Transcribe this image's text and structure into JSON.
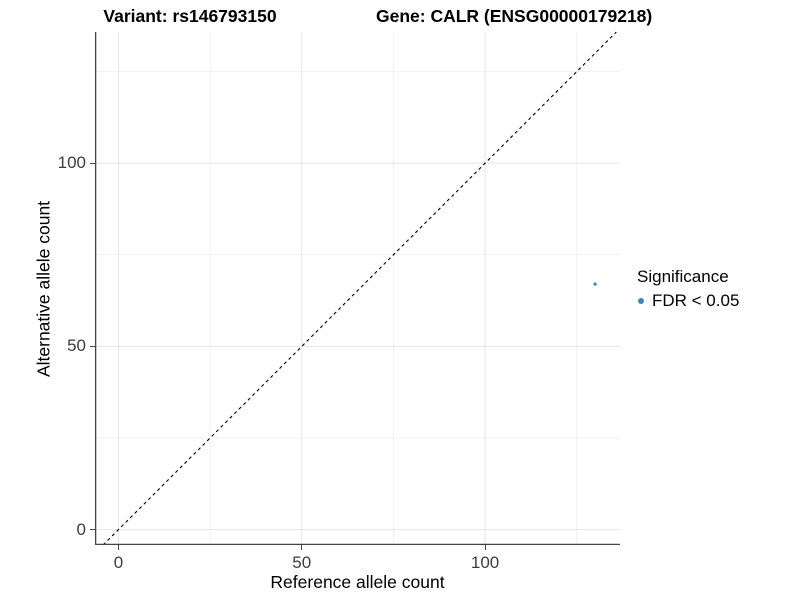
{
  "figure": {
    "title_left": "Variant: rs146793150",
    "title_right": "Gene: CALR (ENSG00000179218)"
  },
  "chart_data": {
    "type": "scatter",
    "title": "Variant: rs146793150   Gene: CALR (ENSG00000179218)",
    "xlabel": "Reference allele count",
    "ylabel": "Alternative allele count",
    "xlim": [
      -6.4,
      136.8
    ],
    "ylim": [
      -4.2,
      135.8
    ],
    "x_major_ticks": [
      0,
      50,
      100
    ],
    "y_major_ticks": [
      0,
      50,
      100
    ],
    "x_minor_ticks": [
      25,
      75,
      125
    ],
    "y_minor_ticks": [
      25,
      75,
      125
    ],
    "grid": "major+minor",
    "points": [
      {
        "x": 130,
        "y": 67,
        "series": "FDR < 0.05"
      }
    ],
    "reference_line": {
      "slope": 1,
      "intercept": 0,
      "style": "dashed",
      "color": "#000000"
    },
    "point_color": "#4682B4",
    "legend": {
      "title": "Significance",
      "position": "right",
      "items": [
        {
          "label": "FDR < 0.05",
          "color": "#4682B4"
        }
      ]
    }
  },
  "colors": {
    "accent_blue": "#4682B4",
    "axis_line": "#454545",
    "tick_label": "#3d3d3d",
    "grid_major": "#e5e5e5",
    "grid_minor": "#f1f1f1",
    "background": "#ffffff"
  }
}
